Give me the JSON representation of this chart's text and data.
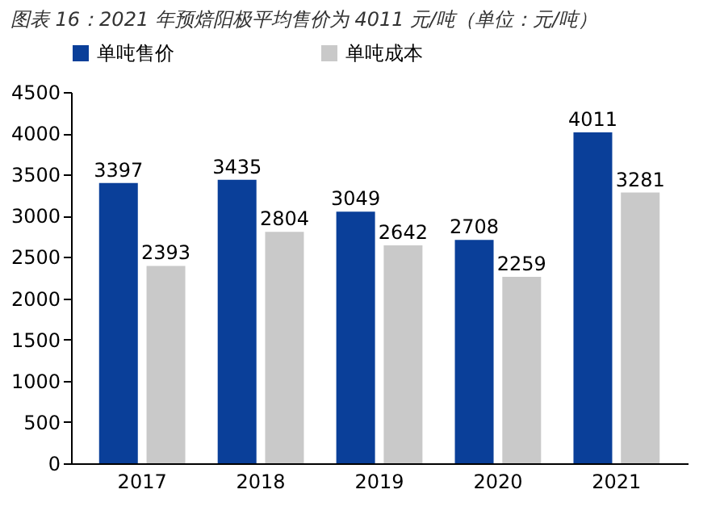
{
  "chart_data": {
    "type": "bar",
    "title": "图表 16：2021 年预焙阳极平均售价为 4011 元/吨（单位：元/吨）",
    "categories": [
      "2017",
      "2018",
      "2019",
      "2020",
      "2021"
    ],
    "series": [
      {
        "name": "单吨售价",
        "color": "#0a3f99",
        "values": [
          3397,
          3435,
          3049,
          2708,
          4011
        ]
      },
      {
        "name": "单吨成本",
        "color": "#c9c9c9",
        "values": [
          2393,
          2804,
          2642,
          2259,
          3281
        ]
      }
    ],
    "ylim": [
      0,
      4500
    ],
    "yticks": [
      0,
      500,
      1000,
      1500,
      2000,
      2500,
      3000,
      3500,
      4000,
      4500
    ],
    "data_labels": true,
    "legend": "top"
  }
}
